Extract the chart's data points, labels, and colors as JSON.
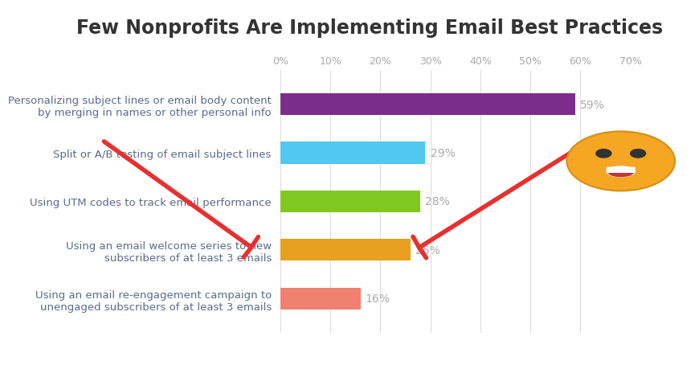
{
  "title": "Few Nonprofits Are Implementing Email Best Practices",
  "categories": [
    "Using an email re-engagement campaign to\nunengaged subscribers of at least 3 emails",
    "Using an email welcome series to new\nsubscribers of at least 3 emails",
    "Using UTM codes to track email performance",
    "Split or A/B testing of email subject lines",
    "Personalizing subject lines or email body content\nby merging in names or other personal info"
  ],
  "values": [
    16,
    26,
    28,
    29,
    59
  ],
  "bar_colors": [
    "#F08070",
    "#E8A020",
    "#80C820",
    "#50C8F0",
    "#7B2D8B"
  ],
  "value_labels": [
    "16%",
    "26%",
    "28%",
    "29%",
    "59%"
  ],
  "xlim": [
    0,
    70
  ],
  "xticks": [
    0,
    10,
    20,
    30,
    40,
    50,
    60,
    70
  ],
  "xtick_labels": [
    "0%",
    "10%",
    "20%",
    "30%",
    "40%",
    "50%",
    "60%",
    "70%"
  ],
  "title_fontsize": 17,
  "label_fontsize": 9.5,
  "value_fontsize": 10,
  "title_color": "#333333",
  "label_color": "#5a6a8a",
  "tick_color": "#aaaaaa",
  "background_color": "#ffffff",
  "bar_height": 0.45
}
